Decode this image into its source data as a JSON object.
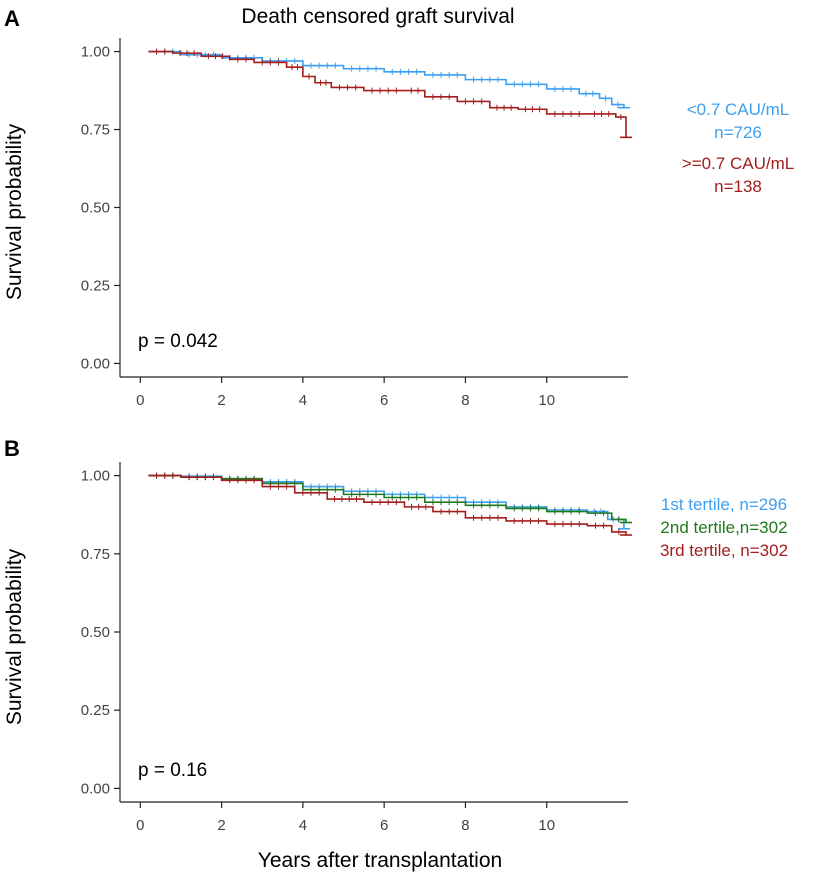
{
  "figure": {
    "xlabel": "Years after transplantation",
    "ylabel": "Survival probability"
  },
  "chart_data": [
    {
      "type": "line",
      "panel": "A",
      "title": "Death censored graft survival",
      "xlabel": "",
      "ylabel": "Survival probability",
      "xlim": [
        -0.5,
        12
      ],
      "ylim": [
        0,
        1
      ],
      "x_ticks": [
        0,
        2,
        4,
        6,
        8,
        10
      ],
      "x_tick_labels": [
        "0",
        "2",
        "4",
        "6",
        "8",
        "10"
      ],
      "y_ticks": [
        0,
        0.25,
        0.5,
        0.75,
        1
      ],
      "y_tick_labels": [
        "0.00",
        "0.25",
        "0.50",
        "0.75",
        "1.00"
      ],
      "p_value": "p = 0.042",
      "series": [
        {
          "name": "<0.7 CAU/mL",
          "legend": [
            "<0.7 CAU/mL",
            "n=726"
          ],
          "color": "#3d9ff2",
          "x": [
            0.2,
            1.0,
            2.0,
            3.0,
            4.0,
            5.0,
            6.0,
            7.0,
            8.0,
            9.0,
            10.0,
            10.8,
            11.3,
            11.6,
            11.9
          ],
          "y": [
            1.0,
            0.99,
            0.98,
            0.97,
            0.955,
            0.945,
            0.935,
            0.925,
            0.91,
            0.895,
            0.88,
            0.865,
            0.85,
            0.83,
            0.82
          ]
        },
        {
          "name": ">=0.7 CAU/mL",
          "legend": [
            ">=0.7 CAU/mL",
            "n=138"
          ],
          "color": "#a31d1d",
          "x": [
            0.2,
            0.8,
            1.5,
            2.2,
            2.8,
            3.6,
            4.0,
            4.3,
            4.7,
            5.5,
            6.5,
            7.0,
            7.8,
            8.6,
            9.3,
            10.0,
            11.0,
            11.7,
            11.95
          ],
          "y": [
            1.0,
            0.995,
            0.985,
            0.975,
            0.965,
            0.95,
            0.92,
            0.9,
            0.885,
            0.875,
            0.875,
            0.855,
            0.84,
            0.82,
            0.815,
            0.8,
            0.8,
            0.79,
            0.725
          ]
        }
      ]
    },
    {
      "type": "line",
      "panel": "B",
      "title": "",
      "xlabel": "Years after transplantation",
      "ylabel": "Survival probability",
      "xlim": [
        -0.5,
        12
      ],
      "ylim": [
        0,
        1
      ],
      "x_ticks": [
        0,
        2,
        4,
        6,
        8,
        10
      ],
      "x_tick_labels": [
        "0",
        "2",
        "4",
        "6",
        "8",
        "10"
      ],
      "y_ticks": [
        0,
        0.25,
        0.5,
        0.75,
        1
      ],
      "y_tick_labels": [
        "0.00",
        "0.25",
        "0.50",
        "0.75",
        "1.00"
      ],
      "p_value": "p = 0.16",
      "series": [
        {
          "name": "1st tertile",
          "legend": [
            "1st tertile, n=296"
          ],
          "color": "#3d9ff2",
          "x": [
            0.2,
            1.0,
            2.0,
            3.0,
            4.0,
            5.0,
            6.0,
            7.0,
            8.0,
            9.0,
            10.0,
            11.0,
            11.5,
            11.9
          ],
          "y": [
            1.0,
            0.998,
            0.99,
            0.98,
            0.965,
            0.95,
            0.94,
            0.93,
            0.915,
            0.9,
            0.89,
            0.885,
            0.86,
            0.83
          ]
        },
        {
          "name": "2nd tertile",
          "legend": [
            "2nd tertile,n=302"
          ],
          "color": "#1f7a1f",
          "x": [
            0.2,
            1.0,
            2.0,
            3.0,
            4.0,
            5.0,
            6.0,
            7.0,
            8.0,
            9.0,
            10.0,
            11.0,
            11.6,
            11.95
          ],
          "y": [
            1.0,
            0.995,
            0.99,
            0.975,
            0.955,
            0.94,
            0.93,
            0.915,
            0.905,
            0.895,
            0.885,
            0.88,
            0.86,
            0.85
          ]
        },
        {
          "name": "3rd tertile",
          "legend": [
            "3rd tertile, n=302"
          ],
          "color": "#a31d1d",
          "x": [
            0.2,
            1.0,
            2.0,
            3.0,
            3.8,
            4.6,
            5.5,
            6.5,
            7.2,
            8.0,
            9.0,
            10.0,
            11.0,
            11.6,
            11.95
          ],
          "y": [
            1.0,
            0.995,
            0.985,
            0.965,
            0.945,
            0.925,
            0.915,
            0.9,
            0.885,
            0.865,
            0.855,
            0.845,
            0.84,
            0.82,
            0.81
          ]
        }
      ]
    }
  ]
}
